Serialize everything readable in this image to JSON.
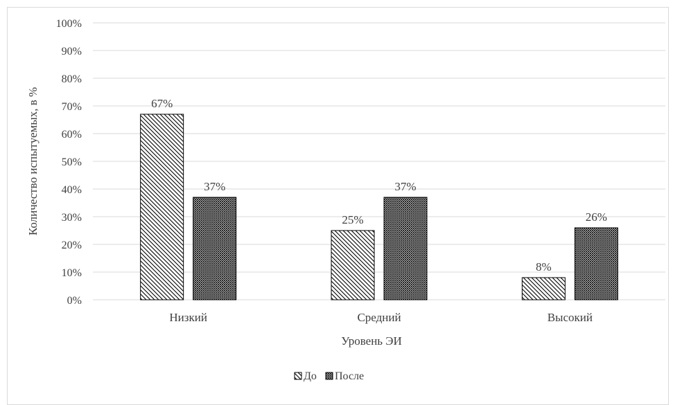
{
  "chart_data": {
    "type": "bar",
    "title": "",
    "xlabel": "Уровень ЭИ",
    "ylabel": "Количество испытуемых, в %",
    "ylim": [
      0,
      100
    ],
    "yticks": [
      "0%",
      "10%",
      "20%",
      "30%",
      "40%",
      "50%",
      "60%",
      "70%",
      "80%",
      "90%",
      "100%"
    ],
    "categories": [
      "Низкий",
      "Средний",
      "Высокий"
    ],
    "grid": true,
    "legend_position": "bottom",
    "series": [
      {
        "name": "До",
        "values": [
          67,
          25,
          8
        ],
        "labels": [
          "67%",
          "25%",
          "8%"
        ],
        "pattern": "diagonal-lines"
      },
      {
        "name": "После",
        "values": [
          37,
          37,
          26
        ],
        "labels": [
          "37%",
          "37%",
          "26%"
        ],
        "pattern": "dense-crosshatch"
      }
    ],
    "colors": {
      "grid": "#d9d9d9",
      "text": "#404040",
      "bar_stroke": "#000000"
    }
  }
}
